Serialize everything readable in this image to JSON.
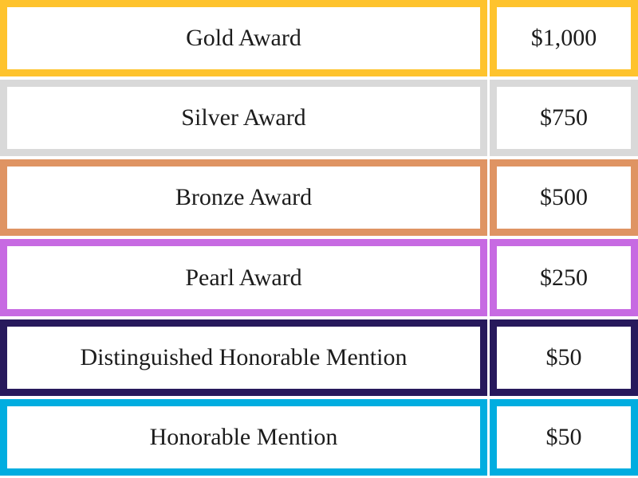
{
  "page": {
    "background": "#ffffff",
    "text_color": "#1c1c1c"
  },
  "awards_table": {
    "columns": [
      "award_name",
      "prize_amount"
    ],
    "rows": [
      {
        "name": "Gold Award",
        "amount": "$1,000",
        "color": "#FEC32D"
      },
      {
        "name": "Silver Award",
        "amount": "$750",
        "color": "#D9D9D9"
      },
      {
        "name": "Bronze Award",
        "amount": "$500",
        "color": "#DF9463"
      },
      {
        "name": "Pearl Award",
        "amount": "$250",
        "color": "#C76AE2"
      },
      {
        "name": "Distinguished Honorable Mention",
        "amount": "$50",
        "color": "#27195C"
      },
      {
        "name": "Honorable Mention",
        "amount": "$50",
        "color": "#00ADE0"
      }
    ]
  }
}
